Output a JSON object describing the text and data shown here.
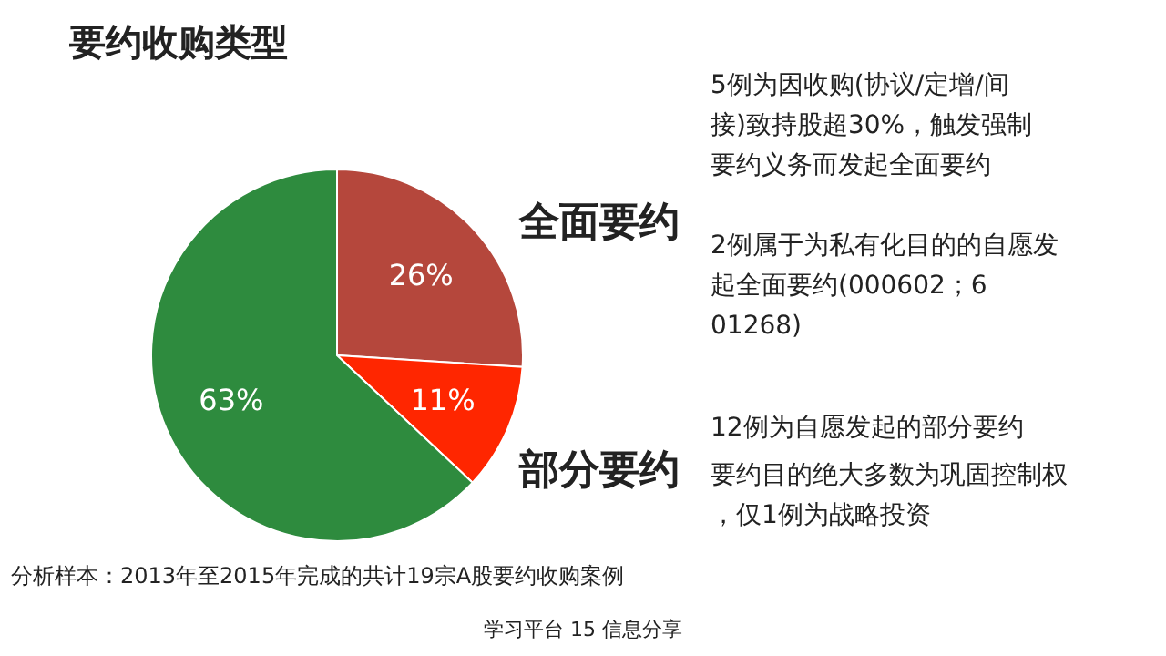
{
  "chart_data": {
    "type": "pie",
    "title": "要约收购类型",
    "categories": [
      null,
      null,
      null
    ],
    "values": [
      26,
      11,
      63
    ],
    "colors": [
      "#b5473c",
      "#ff2600",
      "#2e8b3e"
    ],
    "value_labels": [
      "26%",
      "11%",
      "63%"
    ],
    "annotations": [
      "全面要约",
      "5例为因收购(协议/定增/间接)致持股超30%，触发强制要约义务而发起全面要约",
      "2例属于为私有化目的的自愿发起全面要约(000602；601268)",
      "部分要约",
      "12例为自愿发起的部分要约",
      "要约目的绝大多数为巩固控制权，仅1例为战略投资",
      "分析样本：2013年至2015年完成的共计19宗A股要约收购案例",
      "学习平台 15 信息分享"
    ]
  }
}
